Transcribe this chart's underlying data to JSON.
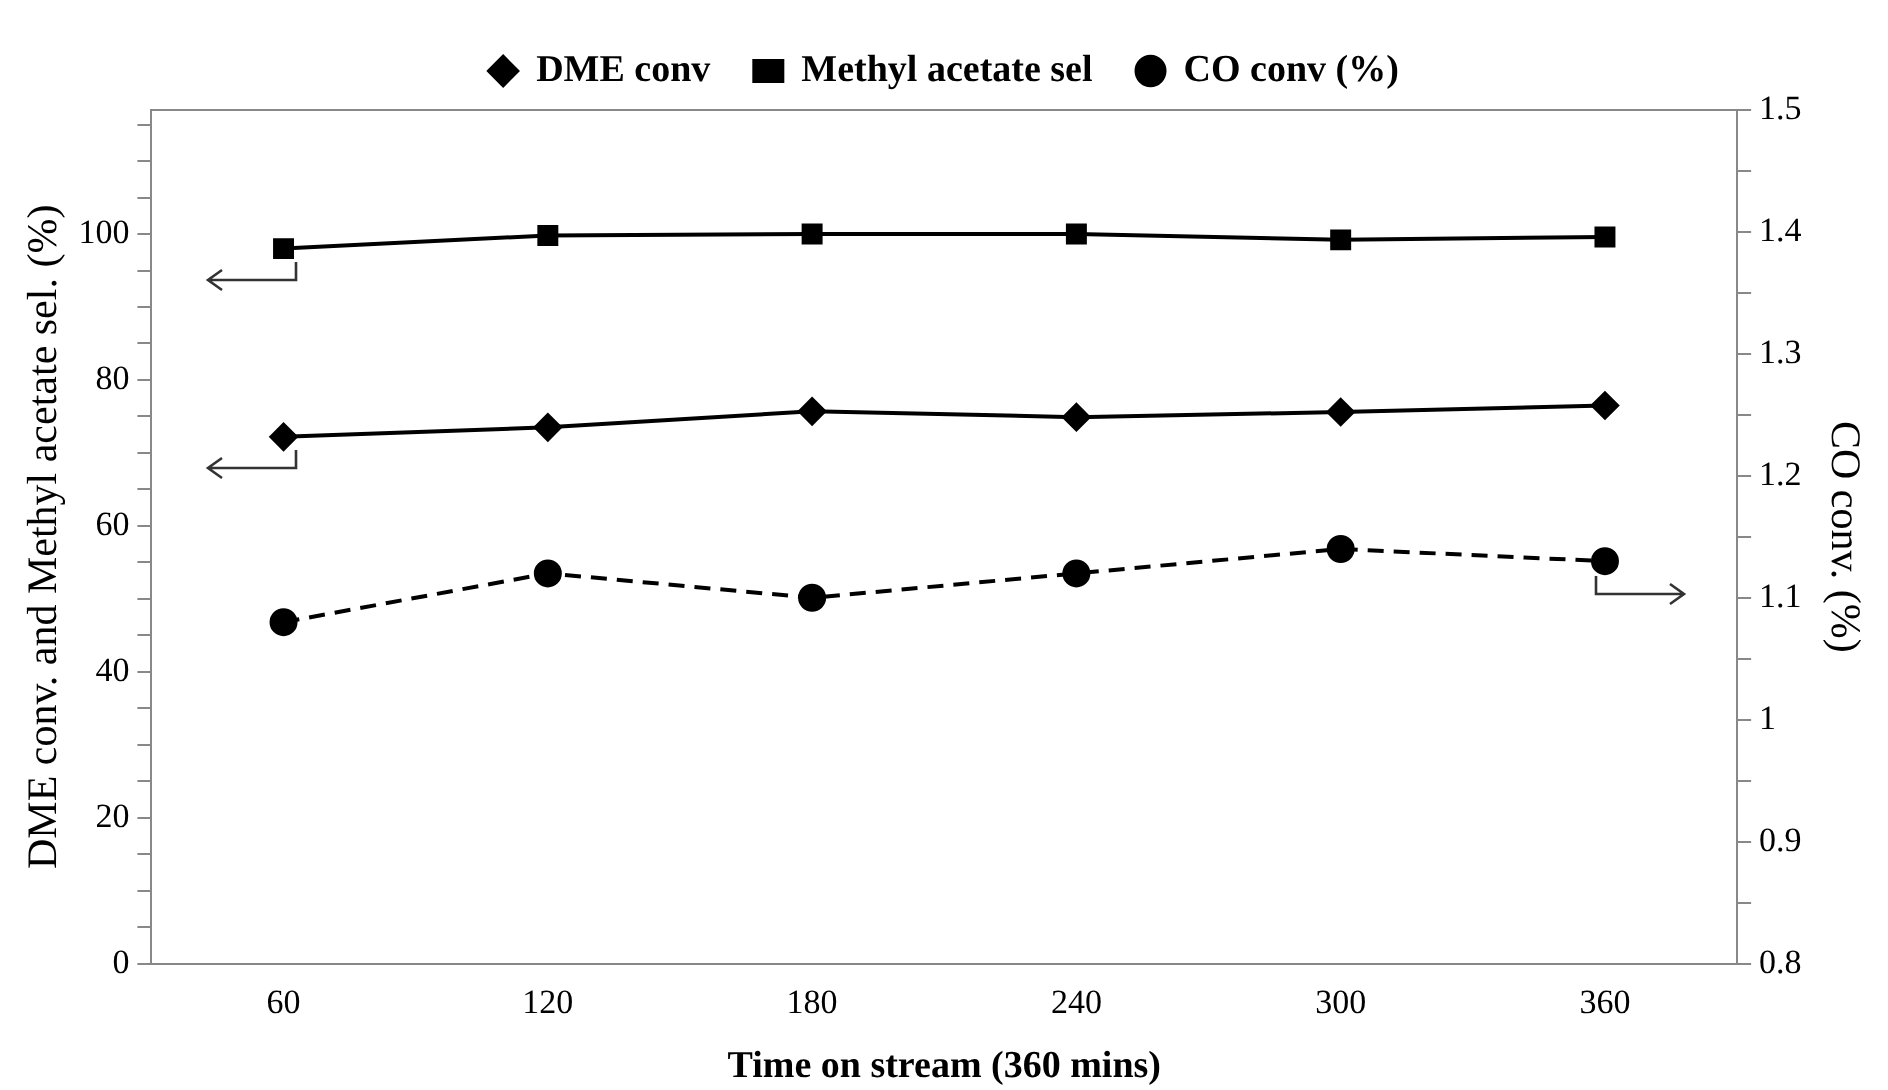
{
  "chart_data": {
    "type": "line",
    "categories": [
      "60",
      "120",
      "180",
      "240",
      "300",
      "360"
    ],
    "xlabel": "Time on stream (360 mins)",
    "ylabel": "DME conv. and Methyl acetate sel. (%)",
    "y2label": "CO conv. (%)",
    "series": [
      {
        "name": "DME conv",
        "color": "#000000",
        "marker": "diamond",
        "line_style": "solid",
        "values": [
          72.2,
          73.5,
          75.7,
          74.9,
          75.6,
          76.5
        ]
      },
      {
        "name": "Methyl acetate sel",
        "color": "#000000",
        "marker": "square",
        "line_style": "solid",
        "values": [
          98,
          99.8,
          100,
          100,
          99.2,
          99.6
        ]
      },
      {
        "name": "CO conv (%)",
        "color": "#000000",
        "marker": "circle",
        "line_style": "dashed",
        "axis": "y2",
        "values": [
          1.08,
          1.12,
          1.1,
          1.12,
          1.14,
          1.13
        ]
      }
    ],
    "ylim": [
      0,
      117
    ],
    "yticks": [
      0,
      {
        "value": 5,
        "label": null
      },
      {
        "value": 10,
        "label": null
      },
      {
        "value": 15,
        "label": null
      },
      20,
      {
        "value": 25,
        "label": null
      },
      {
        "value": 30,
        "label": null
      },
      {
        "value": 35,
        "label": null
      },
      40,
      {
        "value": 45,
        "label": null
      },
      {
        "value": 50,
        "label": null
      },
      {
        "value": 55,
        "label": null
      },
      60,
      {
        "value": 65,
        "label": null
      },
      {
        "value": 70,
        "label": null
      },
      {
        "value": 75,
        "label": null
      },
      80,
      {
        "value": 85,
        "label": null
      },
      {
        "value": 90,
        "label": null
      },
      {
        "value": 95,
        "label": null
      },
      100,
      {
        "value": 105,
        "label": null
      },
      {
        "value": 110,
        "label": null
      },
      {
        "value": 115,
        "label": null
      }
    ],
    "y2lim": [
      0.8,
      1.5
    ],
    "y2ticks": [
      0.8,
      {
        "value": 0.85,
        "label": null
      },
      0.9,
      {
        "value": 0.95,
        "label": null
      },
      1,
      {
        "value": 1.05,
        "label": null
      },
      1.1,
      {
        "value": 1.15,
        "label": null
      },
      1.2,
      {
        "value": 1.25,
        "label": null
      },
      1.3,
      {
        "value": 1.35,
        "label": null
      },
      1.4,
      {
        "value": 1.45,
        "label": null
      },
      1.5
    ],
    "grid": false,
    "legend": "top"
  }
}
